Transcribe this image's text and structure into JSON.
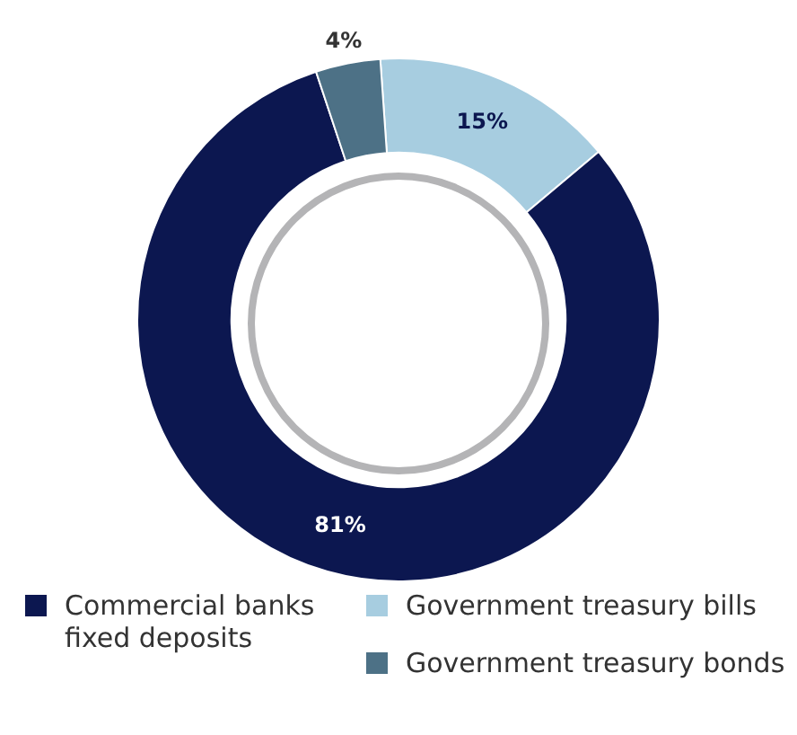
{
  "chart_data": {
    "type": "donut",
    "categories": [
      "Commercial banks fixed deposits",
      "Government treasury bills",
      "Government treasury bonds"
    ],
    "values": [
      81,
      15,
      4
    ],
    "colors": [
      "#0c1750",
      "#a7cde0",
      "#4d7186"
    ],
    "value_labels": [
      "81%",
      "15%",
      "4%"
    ],
    "legend": "bottom"
  }
}
